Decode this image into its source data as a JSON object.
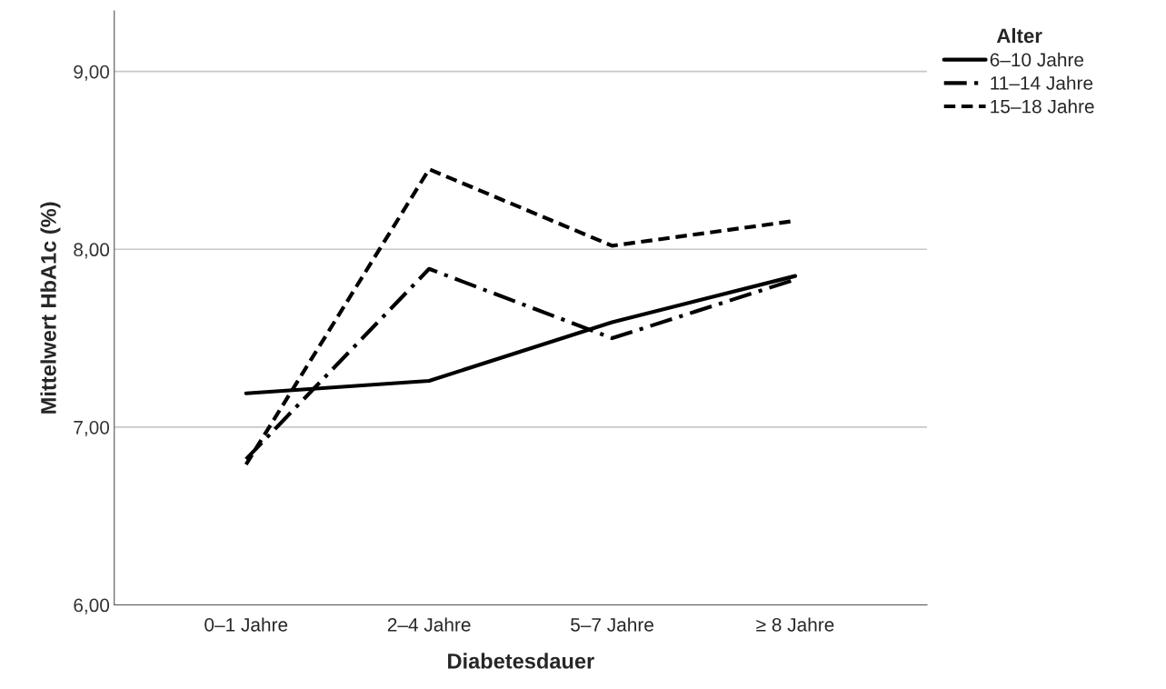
{
  "chart_data": {
    "type": "line",
    "xlabel": "Diabetesdauer",
    "ylabel": "Mittelwert HbA1c (%)",
    "legend_title": "Alter",
    "legend": "top right",
    "categories": [
      "0–1 Jahre",
      "2–4 Jahre",
      "5–7 Jahre",
      "≥ 8 Jahre"
    ],
    "series": [
      {
        "name": "6–10 Jahre",
        "color": "#000000",
        "line_style": "solid",
        "values": [
          7.19,
          7.26,
          7.59,
          7.85
        ]
      },
      {
        "name": "11–14 Jahre",
        "color": "#000000",
        "line_style": "dashdot",
        "values": [
          6.82,
          7.89,
          7.5,
          7.83
        ]
      },
      {
        "name": "15–18 Jahre",
        "color": "#000000",
        "line_style": "dashed",
        "values": [
          6.79,
          8.45,
          8.02,
          8.16
        ]
      }
    ],
    "ylim": [
      6,
      9.34
    ],
    "yticks": [
      {
        "value": 6,
        "label": "6,00"
      },
      {
        "value": 7,
        "label": "7,00"
      },
      {
        "value": 8,
        "label": "8,00"
      },
      {
        "value": 9,
        "label": "9,00"
      }
    ],
    "grid": "y"
  }
}
